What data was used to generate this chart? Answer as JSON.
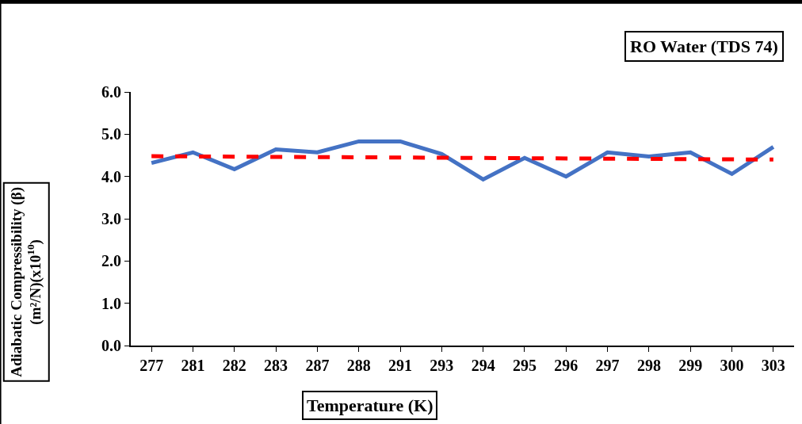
{
  "chart_data": {
    "type": "line",
    "title": "RO Water (TDS 74)",
    "xlabel": "Temperature (K)",
    "ylabel": "Adiabatic Compressibility (β)\n(m²/N)(x10$^{10}$)",
    "categories": [
      "277",
      "281",
      "282",
      "283",
      "287",
      "288",
      "291",
      "293",
      "294",
      "295",
      "296",
      "297",
      "298",
      "299",
      "300",
      "303"
    ],
    "series": [
      {
        "color": "#4472c4",
        "line_style": "solid",
        "values": [
          4.32,
          4.57,
          4.17,
          4.64,
          4.57,
          4.83,
          4.83,
          4.53,
          3.93,
          4.44,
          4.0,
          4.57,
          4.47,
          4.57,
          4.06,
          4.7
        ]
      },
      {
        "type": "line",
        "color": "#ff0000",
        "line_style": "dashed",
        "x": [
          "277",
          "303"
        ],
        "values": [
          4.48,
          4.4
        ]
      }
    ],
    "ylim": [
      0,
      6
    ],
    "yticks": [
      {
        "value": 0,
        "label": "0.0"
      },
      {
        "value": 1,
        "label": "1.0"
      },
      {
        "value": 2,
        "label": "2.0"
      },
      {
        "value": 3,
        "label": "3.0"
      },
      {
        "value": 4,
        "label": "4.0"
      },
      {
        "value": 5,
        "label": "5.0"
      },
      {
        "value": 6,
        "label": "6.0"
      }
    ],
    "marker": "none"
  }
}
